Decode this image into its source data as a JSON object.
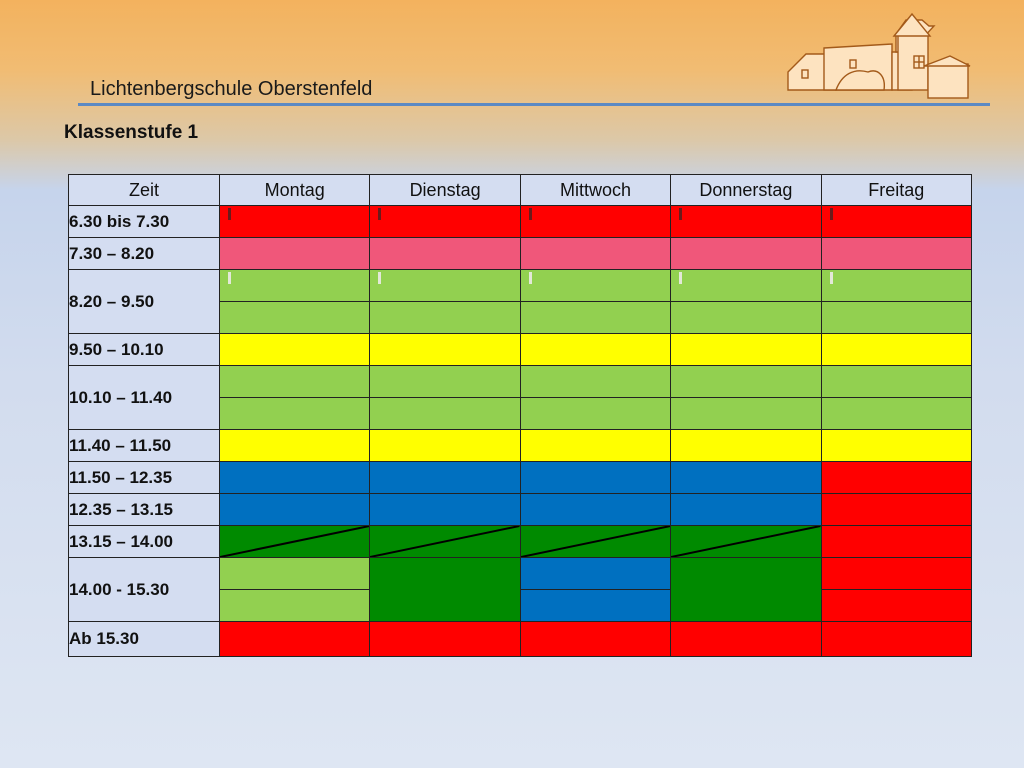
{
  "header": {
    "school_name": "Lichtenbergschule Oberstenfeld",
    "grade": "Klassenstufe 1"
  },
  "table": {
    "columns": [
      "Zeit",
      "Montag",
      "Dienstag",
      "Mittwoch",
      "Donnerstag",
      "Freitag"
    ],
    "times": {
      "t1": "6.30 bis 7.30",
      "t2": "7.30 – 8.20",
      "t3": "8.20 – 9.50",
      "t4": "9.50 – 10.10",
      "t5": "10.10 – 11.40",
      "t6": "11.40 – 11.50",
      "t7": "11.50 – 12.35",
      "t8": "12.35 – 13.15",
      "t9": "13.15 – 14.00",
      "t10": "14.00 - 15.30",
      "t11": "Ab 15.30"
    }
  },
  "colors": {
    "red": "#ff0000",
    "pink": "#f0577a",
    "light_green": "#92d050",
    "yellow": "#ffff00",
    "blue": "#0070c0",
    "dark_green": "#008a00",
    "header_bg": "#d4ddf1",
    "rule": "#5b89c4"
  }
}
